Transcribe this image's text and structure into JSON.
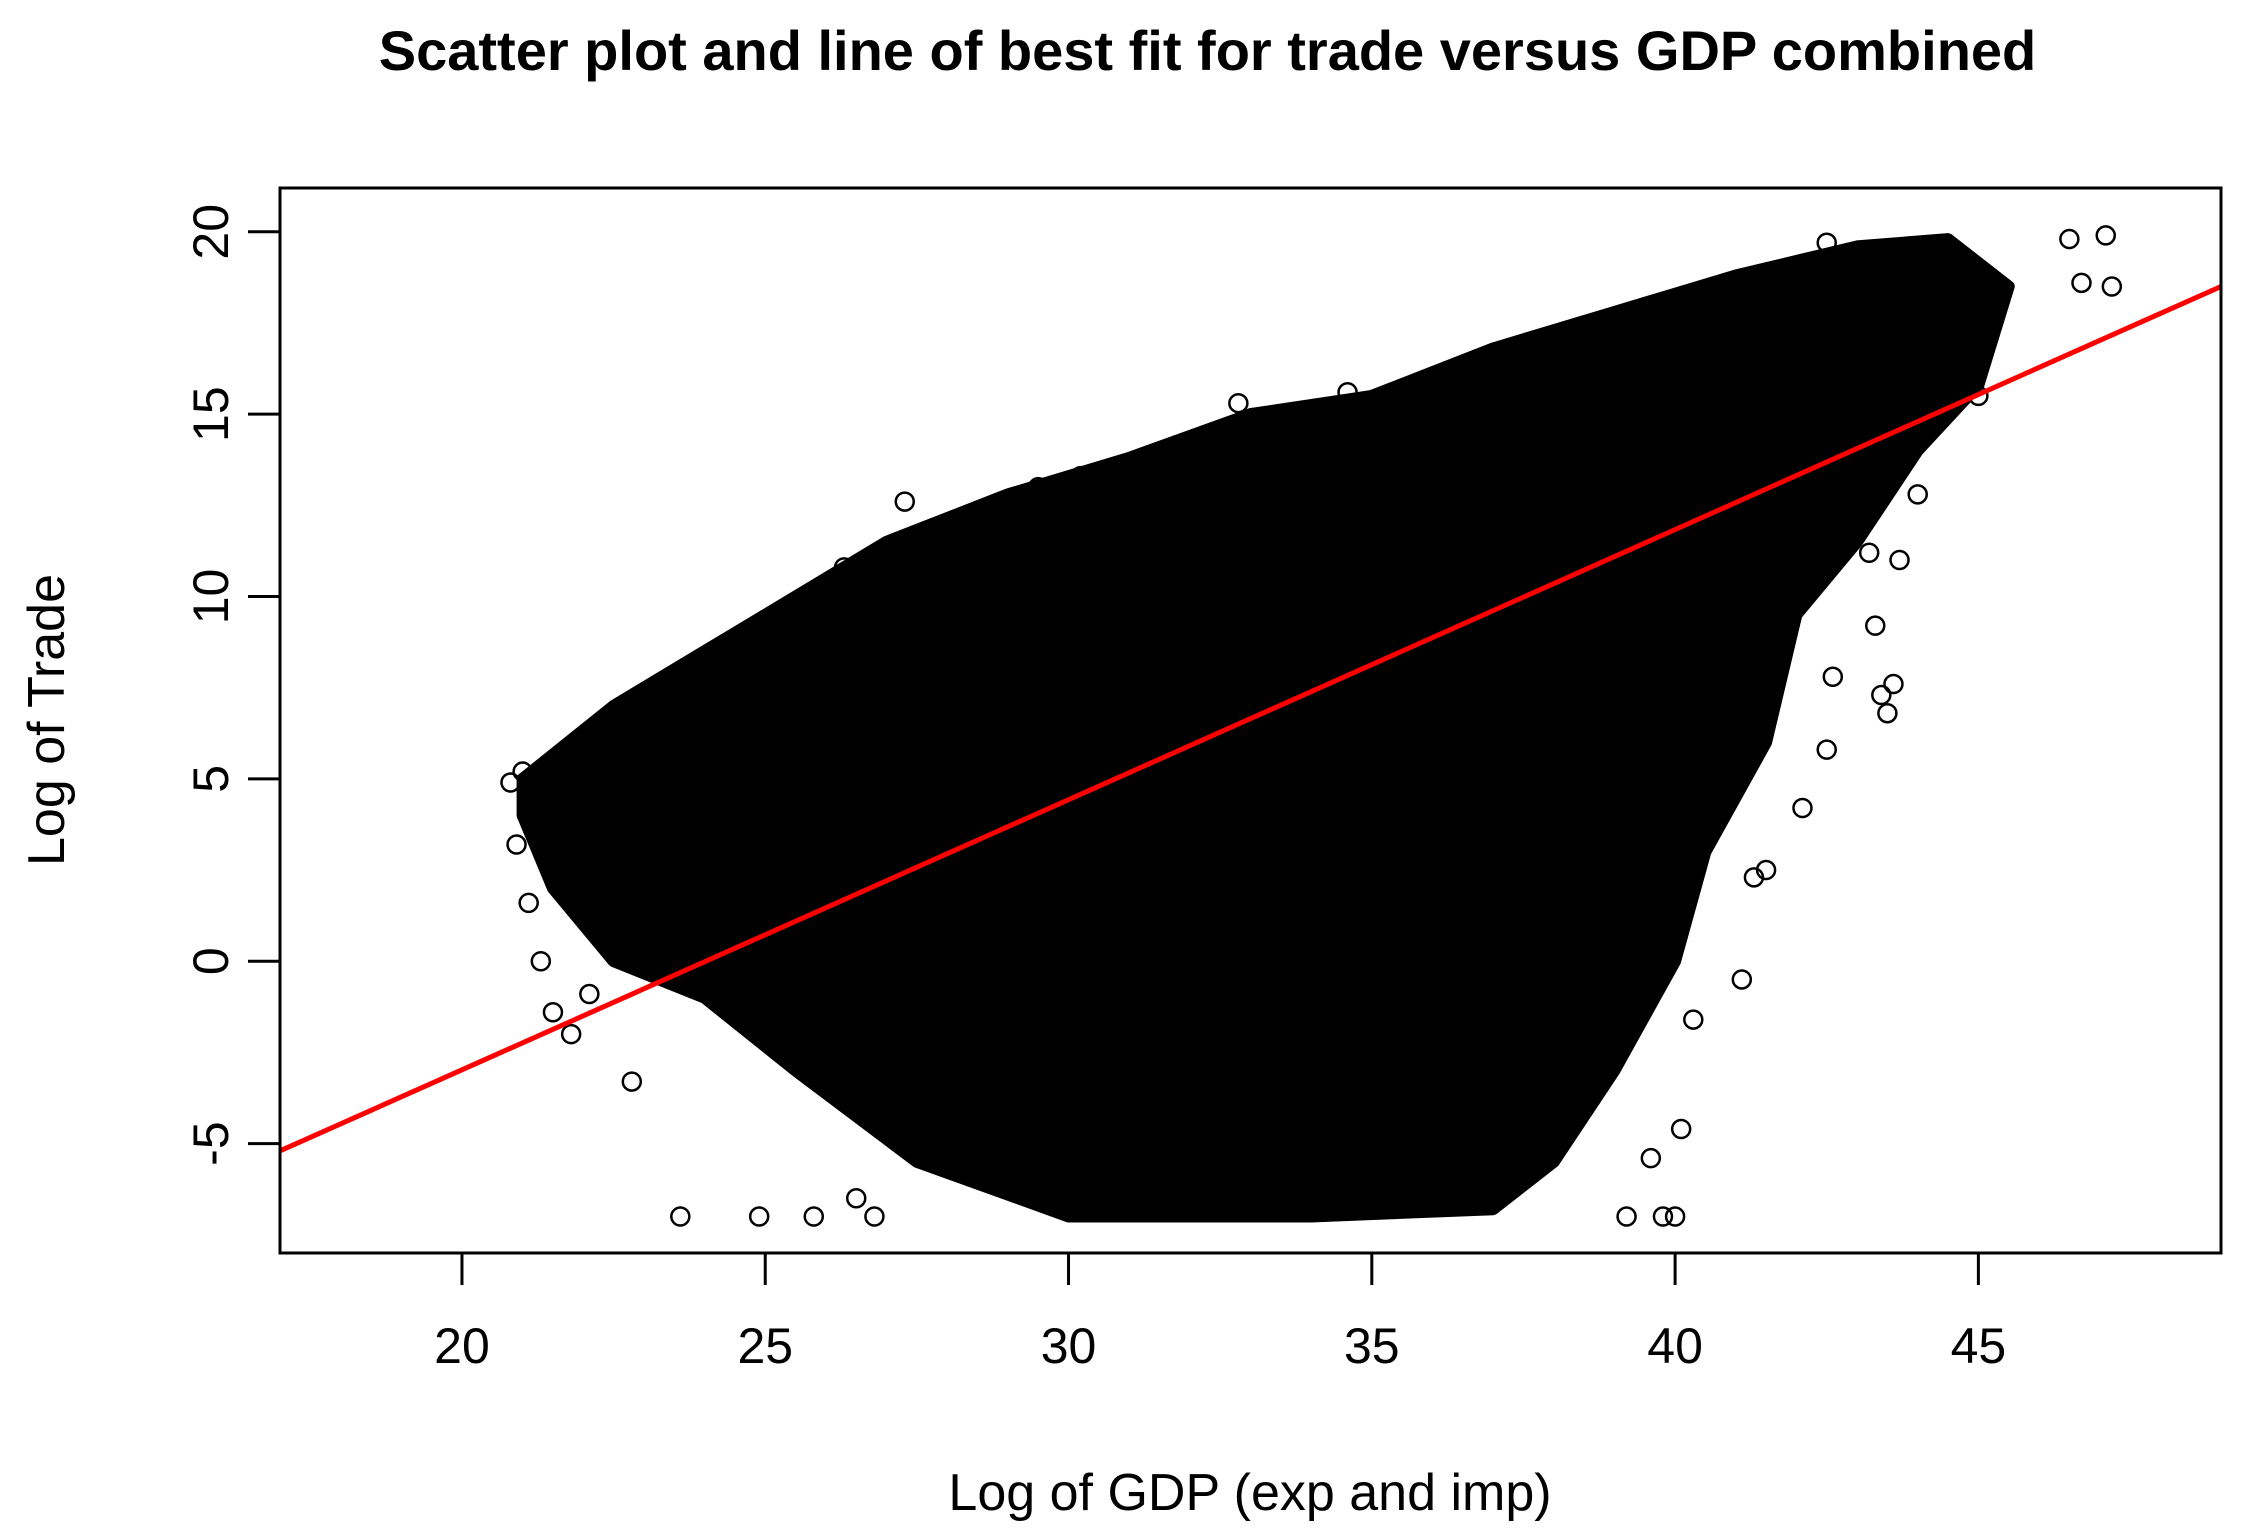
{
  "chart_data": {
    "type": "scatter",
    "title": "Scatter plot and line of best fit for trade versus GDP combined",
    "xlabel": "Log of GDP (exp and imp)",
    "ylabel": "Log of Trade",
    "xlim": [
      17,
      49
    ],
    "ylim": [
      -8,
      21.2
    ],
    "x_ticks": [
      20,
      25,
      30,
      35,
      40,
      45
    ],
    "y_ticks": [
      -5,
      0,
      5,
      10,
      15,
      20
    ],
    "grid": false,
    "legend": "none",
    "point_color": "#000000",
    "series": [
      {
        "type": "scatter",
        "marker": "open-circle",
        "dense_region": [
          [
            21.0,
            5.0
          ],
          [
            22.5,
            7.0
          ],
          [
            24.0,
            8.5
          ],
          [
            25.5,
            10.0
          ],
          [
            27.0,
            11.5
          ],
          [
            29.0,
            12.8
          ],
          [
            31.0,
            13.8
          ],
          [
            33.0,
            15.0
          ],
          [
            35.0,
            15.5
          ],
          [
            37.0,
            16.8
          ],
          [
            39.0,
            17.8
          ],
          [
            41.0,
            18.8
          ],
          [
            43.0,
            19.6
          ],
          [
            44.5,
            19.8
          ],
          [
            45.5,
            18.5
          ],
          [
            45.0,
            15.8
          ],
          [
            44.0,
            14.0
          ],
          [
            43.0,
            11.5
          ],
          [
            42.0,
            9.5
          ],
          [
            41.5,
            6.0
          ],
          [
            40.5,
            3.0
          ],
          [
            40.0,
            0.0
          ],
          [
            39.0,
            -3.0
          ],
          [
            38.0,
            -5.5
          ],
          [
            37.0,
            -6.8
          ],
          [
            34.0,
            -7.0
          ],
          [
            30.0,
            -7.0
          ],
          [
            27.5,
            -5.5
          ],
          [
            25.5,
            -3.0
          ],
          [
            24.0,
            -1.0
          ],
          [
            22.5,
            0.0
          ],
          [
            21.5,
            2.0
          ],
          [
            21.0,
            4.0
          ]
        ],
        "points": [
          [
            20.8,
            4.9
          ],
          [
            21.0,
            5.2
          ],
          [
            20.9,
            3.2
          ],
          [
            21.2,
            3.8
          ],
          [
            21.3,
            0.0
          ],
          [
            21.1,
            1.6
          ],
          [
            21.5,
            -1.4
          ],
          [
            21.8,
            -2.0
          ],
          [
            22.1,
            -0.9
          ],
          [
            22.8,
            -3.3
          ],
          [
            23.6,
            -7.0
          ],
          [
            24.9,
            -7.0
          ],
          [
            25.8,
            -7.0
          ],
          [
            26.5,
            -6.5
          ],
          [
            26.8,
            -7.0
          ],
          [
            27.3,
            12.6
          ],
          [
            26.3,
            10.8
          ],
          [
            29.5,
            13.0
          ],
          [
            30.2,
            13.3
          ],
          [
            32.8,
            15.3
          ],
          [
            34.6,
            15.6
          ],
          [
            39.2,
            -7.0
          ],
          [
            39.8,
            -7.0
          ],
          [
            40.0,
            -7.0
          ],
          [
            39.6,
            -5.4
          ],
          [
            40.1,
            -4.6
          ],
          [
            40.3,
            -1.6
          ],
          [
            41.1,
            -0.5
          ],
          [
            41.3,
            2.3
          ],
          [
            41.5,
            2.5
          ],
          [
            42.1,
            4.2
          ],
          [
            42.5,
            5.8
          ],
          [
            43.3,
            9.2
          ],
          [
            43.6,
            7.6
          ],
          [
            43.4,
            7.3
          ],
          [
            43.5,
            6.8
          ],
          [
            42.6,
            7.8
          ],
          [
            43.7,
            11.0
          ],
          [
            44.0,
            12.8
          ],
          [
            43.2,
            11.2
          ],
          [
            46.5,
            19.8
          ],
          [
            47.1,
            19.9
          ],
          [
            46.7,
            18.6
          ],
          [
            47.2,
            18.5
          ],
          [
            45.0,
            15.5
          ],
          [
            42.5,
            19.7
          ]
        ]
      },
      {
        "type": "line",
        "name": "",
        "color": "#ff0000",
        "x": [
          17,
          49
        ],
        "y": [
          -5.2,
          18.5
        ]
      }
    ]
  }
}
